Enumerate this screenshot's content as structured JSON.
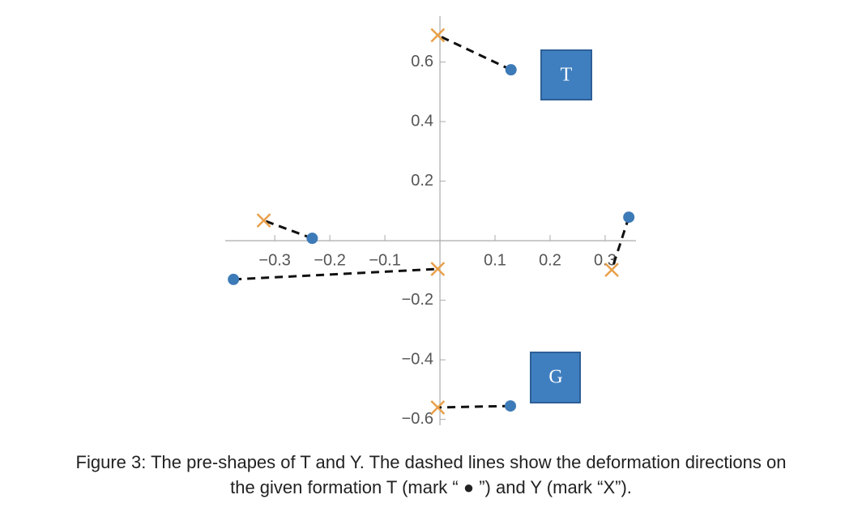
{
  "chart_data": {
    "type": "scatter",
    "xlim": [
      -0.39,
      0.356
    ],
    "ylim": [
      -0.62,
      0.754
    ],
    "xticks": [
      {
        "value": -0.3,
        "label": "−0.3"
      },
      {
        "value": -0.2,
        "label": "−0.2"
      },
      {
        "value": -0.1,
        "label": "−0.1"
      },
      0.1,
      0.2,
      0.3
    ],
    "yticks": [
      {
        "value": -0.6,
        "label": "−0.6"
      },
      {
        "value": -0.4,
        "label": "−0.4"
      },
      {
        "value": -0.2,
        "label": "−0.2"
      },
      0.2,
      0.4,
      0.6
    ],
    "series": [
      {
        "marker": "circle",
        "color": "#3d7ab8",
        "x": [
          0.129,
          -0.232,
          -0.375,
          0.343,
          0.128
        ],
        "y": [
          0.574,
          0.008,
          -0.13,
          0.079,
          -0.555
        ]
      },
      {
        "marker": "x",
        "color": "#e8a04a",
        "x": [
          -0.004,
          -0.32,
          -0.004,
          0.312,
          -0.004
        ],
        "y": [
          0.69,
          0.068,
          -0.095,
          -0.098,
          -0.56
        ]
      }
    ],
    "annotations": [
      "T",
      "G"
    ],
    "caption": [
      "Figure 3: The pre-shapes of T and Y. The dashed lines show the deformation directions on",
      "the given formation T (mark “ ● ”) and Y (mark “X”)."
    ]
  }
}
